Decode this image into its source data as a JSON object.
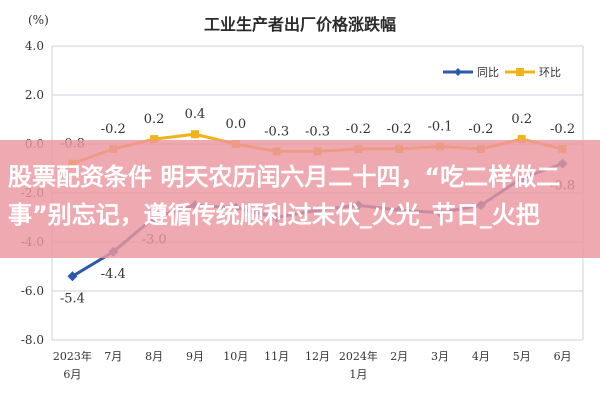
{
  "title": "工业生产者出厂价格涨跌幅",
  "unit_label": "(%)",
  "legend": {
    "yoy_label": "同比",
    "mom_label": "环比"
  },
  "colors": {
    "yoy": "#2e5aa8",
    "mom": "#f2b21b",
    "grid": "#c9d3de",
    "plot_bg": "#ffffff",
    "overlay": "#ec96a0"
  },
  "overlay_text": "股票配资条件 明天农历闰六月二十四，“吃二样做二事”别忘记，遵循传统顺利过末伏_火光_节日_火把",
  "chart_data": {
    "type": "line",
    "title": "工业生产者出厂价格涨跌幅",
    "ylabel": "(%)",
    "xlabel": "",
    "ylim": [
      -8.0,
      4.0
    ],
    "yticks": [
      "4.0",
      "2.0",
      "0.0",
      "-2.0",
      "-4.0",
      "-6.0",
      "-8.0"
    ],
    "grid": true,
    "legend_position": "top-right",
    "categories": [
      "2023年\n6月",
      "7月",
      "8月",
      "9月",
      "10月",
      "11月",
      "12月",
      "2024年\n1月",
      "2月",
      "3月",
      "4月",
      "5月",
      "6月"
    ],
    "series": [
      {
        "name": "同比",
        "values": [
          -5.4,
          -4.4,
          -3.0,
          -2.5,
          -2.6,
          -3.0,
          -2.7,
          -2.5,
          -2.7,
          -2.8,
          -2.5,
          -1.4,
          -0.8
        ],
        "labels": [
          "-5.4",
          "-4.4",
          "-3.0",
          "",
          "",
          "",
          "",
          "",
          "",
          "",
          "",
          "",
          "-0.8"
        ]
      },
      {
        "name": "环比",
        "values": [
          -0.8,
          -0.2,
          0.2,
          0.4,
          0.0,
          -0.3,
          -0.3,
          -0.2,
          -0.2,
          -0.1,
          -0.2,
          0.2,
          -0.2
        ],
        "labels": [
          "-0.8",
          "-0.2",
          "0.2",
          "0.4",
          "0.0",
          "-0.3",
          "-0.3",
          "-0.2",
          "-0.2",
          "-0.1",
          "-0.2",
          "0.2",
          "-0.2"
        ]
      }
    ]
  }
}
